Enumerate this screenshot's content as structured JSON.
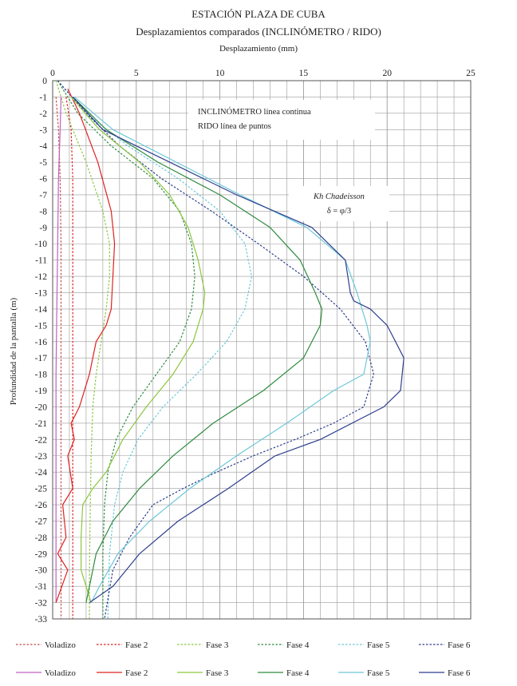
{
  "chart_data": {
    "type": "line",
    "title": "ESTACIÓN PLAZA DE CUBA",
    "subtitle": "Desplazamientos comparados (INCLINÓMETRO / RIDO)",
    "xlabel": "Desplazamiento (mm)",
    "ylabel": "Profundidad de la pantalla (m)",
    "xlim": [
      0,
      25
    ],
    "ylim": [
      0,
      -33
    ],
    "x_ticks": [
      0,
      5,
      10,
      15,
      20,
      25
    ],
    "y_ticks": [
      0,
      -1,
      -2,
      -3,
      -4,
      -5,
      -6,
      -7,
      -8,
      -9,
      -10,
      -11,
      -12,
      -13,
      -14,
      -15,
      -16,
      -17,
      -18,
      -19,
      -20,
      -21,
      -22,
      -23,
      -24,
      -25,
      -26,
      -27,
      -28,
      -29,
      -30,
      -31,
      -32,
      -33
    ],
    "grid": true,
    "annotations": [
      {
        "lines": [
          "INCLINÓMETRO línea continua",
          "RIDO línea de puntos"
        ]
      },
      {
        "lines": [
          "Kh Chadeisson",
          "δ = φ/3"
        ]
      }
    ],
    "legend": {
      "placement": "bottom",
      "dotted": [
        "Voladizo",
        "Fase 2",
        "Fase 3",
        "Fase 4",
        "Fase 5",
        "Fase 6"
      ],
      "solid": [
        "Voladizo",
        "Fase 2",
        "Fase 3",
        "Fase 4",
        "Fase 5",
        "Fase 6"
      ]
    },
    "colors": {
      "Voladizo_dotted": "#c0504d",
      "Voladizo_solid": "#c060c0",
      "Fase 2": "#e02020",
      "Fase 3": "#8cc63f",
      "Fase 4": "#2e8b3e",
      "Fase 5": "#6cc8d8",
      "Fase 6": "#2e3f8f"
    },
    "series": [
      {
        "name": "Voladizo",
        "style": "dotted",
        "color": "#c0504d",
        "x": [
          0.2,
          0.35,
          0.45,
          0.5,
          0.5,
          0.5,
          0.5,
          0.5,
          0.5,
          0.5
        ],
        "y": [
          -1,
          -3,
          -6,
          -10,
          -15,
          -20,
          -25,
          -28,
          -31,
          -33
        ]
      },
      {
        "name": "Fase 2",
        "style": "dotted",
        "color": "#e02020",
        "x": [
          0.8,
          1.1,
          1.2,
          1.2,
          1.2,
          1.2,
          1.2,
          1.2,
          1.2,
          1.2
        ],
        "y": [
          -1,
          -3,
          -6,
          -10,
          -15,
          -20,
          -25,
          -28,
          -31,
          -33
        ]
      },
      {
        "name": "Fase 3",
        "style": "dotted",
        "color": "#8cc63f",
        "x": [
          0.2,
          0.8,
          2.0,
          3.0,
          3.4,
          3.4,
          3.2,
          2.9,
          2.6,
          2.4,
          2.3,
          2.25,
          2.2,
          2.2
        ],
        "y": [
          0,
          -2,
          -5,
          -8,
          -10,
          -12,
          -14,
          -16,
          -18,
          -20,
          -23,
          -26,
          -30,
          -33
        ]
      },
      {
        "name": "Fase 4",
        "style": "dotted",
        "color": "#2e8b3e",
        "x": [
          0.3,
          1.5,
          3.5,
          6.0,
          7.6,
          8.3,
          8.5,
          8.3,
          7.6,
          6.2,
          4.8,
          3.8,
          3.3,
          3.1,
          3.0,
          3.0
        ],
        "y": [
          0,
          -2,
          -4,
          -6,
          -8,
          -10,
          -12,
          -14,
          -16,
          -18,
          -20,
          -22,
          -24,
          -26,
          -29,
          -33
        ]
      },
      {
        "name": "Fase 5",
        "style": "dotted",
        "color": "#6cc8d8",
        "x": [
          0.3,
          2.0,
          4.5,
          7.5,
          10.0,
          11.5,
          11.9,
          11.5,
          10.4,
          8.6,
          6.6,
          5.1,
          4.2,
          3.7,
          3.4,
          3.3
        ],
        "y": [
          0,
          -2,
          -4,
          -6,
          -8,
          -10,
          -12,
          -14,
          -16,
          -18,
          -20,
          -22,
          -24,
          -26,
          -29,
          -33
        ]
      },
      {
        "name": "Fase 6",
        "style": "dotted",
        "color": "#2e3f8f",
        "x": [
          0.3,
          2.0,
          4.0,
          6.5,
          9.5,
          12.3,
          15.0,
          17.2,
          18.7,
          19.2,
          18.6,
          16.8,
          14.5,
          12.0,
          9.8,
          7.8,
          6.0,
          4.6,
          3.6,
          3.1
        ],
        "y": [
          0,
          -2,
          -4,
          -6,
          -8,
          -10,
          -12,
          -14,
          -16,
          -18,
          -20,
          -21,
          -22,
          -23,
          -24,
          -25,
          -26,
          -28,
          -30,
          -33
        ]
      },
      {
        "name": "Voladizo",
        "style": "solid",
        "color": "#c060c0",
        "x": [
          0.5,
          0.45,
          0.35,
          0.3,
          0.25,
          0.2,
          0.2,
          0.2,
          0.2,
          0.2,
          0.2
        ],
        "y": [
          -1,
          -3,
          -6,
          -10,
          -14,
          -18,
          -22,
          -26,
          -29,
          -31,
          -32
        ]
      },
      {
        "name": "Fase 2",
        "style": "solid",
        "color": "#e02020",
        "x": [
          0.9,
          1.6,
          2.7,
          3.5,
          3.7,
          3.6,
          3.5,
          3.2,
          2.6,
          2.2,
          1.6,
          1.1,
          1.3,
          0.9,
          1.2,
          0.6,
          0.8,
          0.3,
          0.9,
          0.2
        ],
        "y": [
          -0.5,
          -2,
          -5,
          -8,
          -10,
          -12,
          -14,
          -15,
          -16,
          -18,
          -20,
          -21,
          -22,
          -23,
          -25,
          -26,
          -28,
          -29,
          -30,
          -32
        ]
      },
      {
        "name": "Fase 3",
        "style": "solid",
        "color": "#8cc63f",
        "x": [
          1.1,
          2.8,
          5.2,
          7.0,
          8.1,
          8.7,
          9.1,
          9.0,
          8.4,
          7.2,
          5.6,
          4.2,
          3.2,
          2.4,
          1.8,
          1.7,
          1.7,
          2.3
        ],
        "y": [
          -1,
          -3,
          -5,
          -7,
          -9,
          -11,
          -13,
          -14,
          -16,
          -18,
          -20,
          -22,
          -24,
          -25,
          -26,
          -28,
          -30,
          -32
        ]
      },
      {
        "name": "Fase 4",
        "style": "solid",
        "color": "#2e8b3e",
        "x": [
          1.2,
          3.2,
          6.3,
          10.0,
          13.0,
          14.8,
          15.7,
          16.1,
          16.0,
          15.0,
          12.6,
          9.6,
          7.2,
          5.2,
          3.6,
          2.6,
          2.2,
          2.0
        ],
        "y": [
          -1,
          -3,
          -5,
          -7,
          -9,
          -11,
          -13,
          -14,
          -15,
          -17,
          -19,
          -21,
          -23,
          -25,
          -27,
          -29,
          -31,
          -32
        ]
      },
      {
        "name": "Fase 5",
        "style": "solid",
        "color": "#6cc8d8",
        "x": [
          1.3,
          3.6,
          7.4,
          11.2,
          15.2,
          17.5,
          18.2,
          18.8,
          19.0,
          18.6,
          16.8,
          14.0,
          11.0,
          8.2,
          5.8,
          3.9,
          2.8,
          2.3
        ],
        "y": [
          -1,
          -3,
          -5,
          -7,
          -9,
          -11,
          -13,
          -15,
          -16,
          -18,
          -19,
          -21,
          -23,
          -25,
          -27,
          -29,
          -31,
          -32
        ]
      },
      {
        "name": "Fase 6",
        "style": "solid",
        "color": "#2e3f8f",
        "x": [
          1.2,
          3.0,
          7.0,
          11.0,
          15.5,
          17.5,
          17.8,
          18.0,
          19.0,
          20.0,
          21.0,
          20.8,
          19.8,
          16.0,
          13.3,
          10.5,
          7.5,
          5.2,
          3.6,
          2.2
        ],
        "y": [
          -1,
          -3,
          -5,
          -7,
          -9,
          -11,
          -13,
          -13.5,
          -14,
          -15,
          -17,
          -19,
          -20,
          -22,
          -23,
          -25,
          -27,
          -29,
          -31,
          -32
        ]
      }
    ]
  }
}
